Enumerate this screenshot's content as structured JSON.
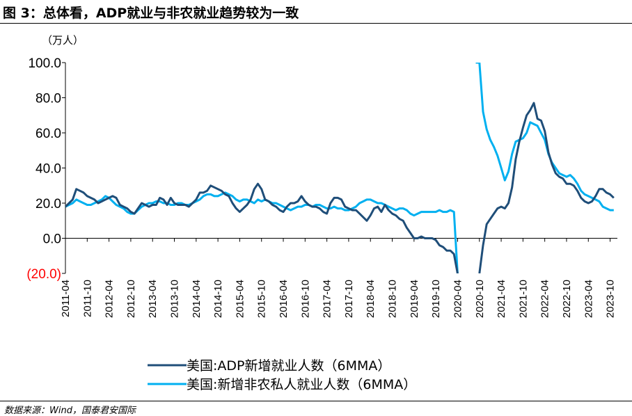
{
  "figure": {
    "title": "图 3：总体看，ADP就业与非农就业趋势较为一致",
    "source": "数据来源：Wind，国泰君安国际"
  },
  "chart_data": {
    "type": "line",
    "unit": "（万人）",
    "ylim": [
      -20,
      100
    ],
    "yticks": [
      -20,
      0,
      20,
      40,
      60,
      80,
      100
    ],
    "ytick_labels": [
      "(20.0)",
      "0.0",
      "20.0",
      "40.0",
      "60.0",
      "80.0",
      "100.0"
    ],
    "negative_tick_color": "#ff0000",
    "xlim": [
      "2011-04",
      "2023-12"
    ],
    "xticks": [
      "2011-04",
      "2011-10",
      "2012-04",
      "2012-10",
      "2013-04",
      "2013-10",
      "2014-04",
      "2014-10",
      "2015-04",
      "2015-10",
      "2016-04",
      "2016-10",
      "2017-04",
      "2017-10",
      "2018-04",
      "2018-10",
      "2019-04",
      "2019-10",
      "2020-04",
      "2020-10",
      "2021-04",
      "2021-10",
      "2022-04",
      "2022-10",
      "2023-04",
      "2023-10"
    ],
    "grid": false,
    "legend_position": "bottom",
    "series": [
      {
        "name": "美国:ADP新增就业人数（6MMA）",
        "color": "#1f4e79",
        "points": [
          [
            "2011-04",
            18
          ],
          [
            "2011-05",
            20
          ],
          [
            "2011-06",
            22
          ],
          [
            "2011-07",
            28
          ],
          [
            "2011-08",
            27
          ],
          [
            "2011-09",
            26
          ],
          [
            "2011-10",
            24
          ],
          [
            "2011-11",
            23
          ],
          [
            "2011-12",
            22
          ],
          [
            "2012-01",
            20
          ],
          [
            "2012-02",
            21
          ],
          [
            "2012-03",
            22
          ],
          [
            "2012-04",
            23
          ],
          [
            "2012-05",
            24
          ],
          [
            "2012-06",
            23
          ],
          [
            "2012-07",
            19
          ],
          [
            "2012-08",
            18
          ],
          [
            "2012-09",
            17
          ],
          [
            "2012-10",
            15
          ],
          [
            "2012-11",
            14
          ],
          [
            "2012-12",
            17
          ],
          [
            "2013-01",
            20
          ],
          [
            "2013-02",
            19
          ],
          [
            "2013-03",
            18
          ],
          [
            "2013-04",
            19
          ],
          [
            "2013-05",
            19
          ],
          [
            "2013-06",
            23
          ],
          [
            "2013-07",
            22
          ],
          [
            "2013-08",
            19
          ],
          [
            "2013-09",
            23
          ],
          [
            "2013-10",
            20
          ],
          [
            "2013-11",
            19
          ],
          [
            "2013-12",
            19
          ],
          [
            "2014-01",
            19
          ],
          [
            "2014-02",
            18
          ],
          [
            "2014-03",
            20
          ],
          [
            "2014-04",
            22
          ],
          [
            "2014-05",
            26
          ],
          [
            "2014-06",
            26
          ],
          [
            "2014-07",
            27
          ],
          [
            "2014-08",
            30
          ],
          [
            "2014-09",
            29
          ],
          [
            "2014-10",
            28
          ],
          [
            "2014-11",
            27
          ],
          [
            "2014-12",
            25
          ],
          [
            "2015-01",
            24
          ],
          [
            "2015-02",
            20
          ],
          [
            "2015-03",
            17
          ],
          [
            "2015-04",
            15
          ],
          [
            "2015-05",
            17
          ],
          [
            "2015-06",
            19
          ],
          [
            "2015-07",
            22
          ],
          [
            "2015-08",
            28
          ],
          [
            "2015-09",
            31
          ],
          [
            "2015-10",
            28
          ],
          [
            "2015-11",
            22
          ],
          [
            "2015-12",
            21
          ],
          [
            "2016-01",
            19
          ],
          [
            "2016-02",
            18
          ],
          [
            "2016-03",
            16
          ],
          [
            "2016-04",
            15
          ],
          [
            "2016-05",
            18
          ],
          [
            "2016-06",
            20
          ],
          [
            "2016-07",
            20
          ],
          [
            "2016-08",
            21
          ],
          [
            "2016-09",
            24
          ],
          [
            "2016-10",
            21
          ],
          [
            "2016-11",
            19
          ],
          [
            "2016-12",
            18
          ],
          [
            "2017-01",
            18
          ],
          [
            "2017-02",
            17
          ],
          [
            "2017-03",
            15
          ],
          [
            "2017-04",
            14
          ],
          [
            "2017-05",
            20
          ],
          [
            "2017-06",
            23
          ],
          [
            "2017-07",
            23
          ],
          [
            "2017-08",
            22
          ],
          [
            "2017-09",
            18
          ],
          [
            "2017-10",
            17
          ],
          [
            "2017-11",
            16
          ],
          [
            "2017-12",
            16
          ],
          [
            "2018-01",
            14
          ],
          [
            "2018-02",
            12
          ],
          [
            "2018-03",
            10
          ],
          [
            "2018-04",
            13
          ],
          [
            "2018-05",
            17
          ],
          [
            "2018-06",
            18
          ],
          [
            "2018-07",
            15
          ],
          [
            "2018-08",
            19
          ],
          [
            "2018-09",
            16
          ],
          [
            "2018-10",
            14
          ],
          [
            "2018-11",
            13
          ],
          [
            "2018-12",
            11
          ],
          [
            "2019-01",
            10
          ],
          [
            "2019-02",
            6
          ],
          [
            "2019-03",
            3
          ],
          [
            "2019-04",
            0
          ],
          [
            "2019-05",
            0
          ],
          [
            "2019-06",
            1
          ],
          [
            "2019-07",
            0
          ],
          [
            "2019-08",
            0
          ],
          [
            "2019-09",
            0
          ],
          [
            "2019-10",
            -1
          ],
          [
            "2019-11",
            -4
          ],
          [
            "2019-12",
            -5
          ],
          [
            "2020-01",
            -7
          ],
          [
            "2020-02",
            -7
          ],
          [
            "2020-03",
            -9
          ],
          [
            "2020-04",
            -20
          ]
        ],
        "points_after_gap": [
          [
            "2020-10",
            -20
          ],
          [
            "2020-11",
            -4
          ],
          [
            "2020-12",
            8
          ],
          [
            "2021-01",
            11
          ],
          [
            "2021-02",
            14
          ],
          [
            "2021-03",
            17
          ],
          [
            "2021-04",
            18
          ],
          [
            "2021-05",
            17
          ],
          [
            "2021-06",
            20
          ],
          [
            "2021-07",
            29
          ],
          [
            "2021-08",
            45
          ],
          [
            "2021-09",
            55
          ],
          [
            "2021-10",
            63
          ],
          [
            "2021-11",
            70
          ],
          [
            "2021-12",
            73
          ],
          [
            "2022-01",
            77
          ],
          [
            "2022-02",
            68
          ],
          [
            "2022-03",
            67
          ],
          [
            "2022-04",
            61
          ],
          [
            "2022-05",
            49
          ],
          [
            "2022-06",
            42
          ],
          [
            "2022-07",
            37
          ],
          [
            "2022-08",
            35
          ],
          [
            "2022-09",
            34
          ],
          [
            "2022-10",
            31
          ],
          [
            "2022-11",
            31
          ],
          [
            "2022-12",
            30
          ],
          [
            "2023-01",
            27
          ],
          [
            "2023-02",
            23
          ],
          [
            "2023-03",
            21
          ],
          [
            "2023-04",
            20
          ],
          [
            "2023-05",
            21
          ],
          [
            "2023-06",
            24
          ],
          [
            "2023-07",
            28
          ],
          [
            "2023-08",
            28
          ],
          [
            "2023-09",
            26
          ],
          [
            "2023-10",
            25
          ],
          [
            "2023-11",
            23
          ]
        ]
      },
      {
        "name": "美国:新增非农私人就业人数（6MMA）",
        "color": "#00b0f0",
        "points": [
          [
            "2011-04",
            18
          ],
          [
            "2011-05",
            19
          ],
          [
            "2011-06",
            20
          ],
          [
            "2011-07",
            22
          ],
          [
            "2011-08",
            21
          ],
          [
            "2011-09",
            20
          ],
          [
            "2011-10",
            19
          ],
          [
            "2011-11",
            19
          ],
          [
            "2011-12",
            20
          ],
          [
            "2012-01",
            21
          ],
          [
            "2012-02",
            22
          ],
          [
            "2012-03",
            24
          ],
          [
            "2012-04",
            23
          ],
          [
            "2012-05",
            21
          ],
          [
            "2012-06",
            19
          ],
          [
            "2012-07",
            18
          ],
          [
            "2012-08",
            17
          ],
          [
            "2012-09",
            15
          ],
          [
            "2012-10",
            14
          ],
          [
            "2012-11",
            14
          ],
          [
            "2012-12",
            16
          ],
          [
            "2013-01",
            18
          ],
          [
            "2013-02",
            19
          ],
          [
            "2013-03",
            20
          ],
          [
            "2013-04",
            20
          ],
          [
            "2013-05",
            21
          ],
          [
            "2013-06",
            21
          ],
          [
            "2013-07",
            20
          ],
          [
            "2013-08",
            20
          ],
          [
            "2013-09",
            19
          ],
          [
            "2013-10",
            19
          ],
          [
            "2013-11",
            20
          ],
          [
            "2013-12",
            20
          ],
          [
            "2014-01",
            19
          ],
          [
            "2014-02",
            19
          ],
          [
            "2014-03",
            20
          ],
          [
            "2014-04",
            21
          ],
          [
            "2014-05",
            22
          ],
          [
            "2014-06",
            24
          ],
          [
            "2014-07",
            25
          ],
          [
            "2014-08",
            25
          ],
          [
            "2014-09",
            24
          ],
          [
            "2014-10",
            24
          ],
          [
            "2014-11",
            25
          ],
          [
            "2014-12",
            26
          ],
          [
            "2015-01",
            25
          ],
          [
            "2015-02",
            24
          ],
          [
            "2015-03",
            22
          ],
          [
            "2015-04",
            21
          ],
          [
            "2015-05",
            22
          ],
          [
            "2015-06",
            22
          ],
          [
            "2015-07",
            21
          ],
          [
            "2015-08",
            20
          ],
          [
            "2015-09",
            22
          ],
          [
            "2015-10",
            21
          ],
          [
            "2015-11",
            22
          ],
          [
            "2015-12",
            21
          ],
          [
            "2016-01",
            20
          ],
          [
            "2016-02",
            20
          ],
          [
            "2016-03",
            19
          ],
          [
            "2016-04",
            18
          ],
          [
            "2016-05",
            17
          ],
          [
            "2016-06",
            16
          ],
          [
            "2016-07",
            17
          ],
          [
            "2016-08",
            18
          ],
          [
            "2016-09",
            18
          ],
          [
            "2016-10",
            19
          ],
          [
            "2016-11",
            19
          ],
          [
            "2016-12",
            18
          ],
          [
            "2017-01",
            19
          ],
          [
            "2017-02",
            19
          ],
          [
            "2017-03",
            18
          ],
          [
            "2017-04",
            17
          ],
          [
            "2017-05",
            17
          ],
          [
            "2017-06",
            18
          ],
          [
            "2017-07",
            17
          ],
          [
            "2017-08",
            17
          ],
          [
            "2017-09",
            16
          ],
          [
            "2017-10",
            16
          ],
          [
            "2017-11",
            17
          ],
          [
            "2017-12",
            18
          ],
          [
            "2018-01",
            20
          ],
          [
            "2018-02",
            21
          ],
          [
            "2018-03",
            22
          ],
          [
            "2018-04",
            22
          ],
          [
            "2018-05",
            21
          ],
          [
            "2018-06",
            20
          ],
          [
            "2018-07",
            20
          ],
          [
            "2018-08",
            19
          ],
          [
            "2018-09",
            18
          ],
          [
            "2018-10",
            17
          ],
          [
            "2018-11",
            16
          ],
          [
            "2018-12",
            17
          ],
          [
            "2019-01",
            17
          ],
          [
            "2019-02",
            16
          ],
          [
            "2019-03",
            14
          ],
          [
            "2019-04",
            13
          ],
          [
            "2019-05",
            14
          ],
          [
            "2019-06",
            15
          ],
          [
            "2019-07",
            15
          ],
          [
            "2019-08",
            15
          ],
          [
            "2019-09",
            15
          ],
          [
            "2019-10",
            15
          ],
          [
            "2019-11",
            16
          ],
          [
            "2019-12",
            15
          ],
          [
            "2020-01",
            15
          ],
          [
            "2020-02",
            16
          ],
          [
            "2020-03",
            15
          ],
          [
            "2020-04",
            -20
          ]
        ],
        "points_after_gap": [
          [
            "2020-09",
            100
          ],
          [
            "2020-10",
            100
          ],
          [
            "2020-11",
            72
          ],
          [
            "2020-12",
            62
          ],
          [
            "2021-01",
            56
          ],
          [
            "2021-02",
            52
          ],
          [
            "2021-03",
            47
          ],
          [
            "2021-04",
            40
          ],
          [
            "2021-05",
            33
          ],
          [
            "2021-06",
            38
          ],
          [
            "2021-07",
            48
          ],
          [
            "2021-08",
            55
          ],
          [
            "2021-09",
            56
          ],
          [
            "2021-10",
            57
          ],
          [
            "2021-11",
            60
          ],
          [
            "2021-12",
            66
          ],
          [
            "2022-01",
            65
          ],
          [
            "2022-02",
            64
          ],
          [
            "2022-03",
            60
          ],
          [
            "2022-04",
            56
          ],
          [
            "2022-05",
            48
          ],
          [
            "2022-06",
            43
          ],
          [
            "2022-07",
            40
          ],
          [
            "2022-08",
            37
          ],
          [
            "2022-09",
            36
          ],
          [
            "2022-10",
            35
          ],
          [
            "2022-11",
            36
          ],
          [
            "2022-12",
            34
          ],
          [
            "2023-01",
            31
          ],
          [
            "2023-02",
            27
          ],
          [
            "2023-03",
            25
          ],
          [
            "2023-04",
            24
          ],
          [
            "2023-05",
            23
          ],
          [
            "2023-06",
            22
          ],
          [
            "2023-07",
            21
          ],
          [
            "2023-08",
            18
          ],
          [
            "2023-09",
            17
          ],
          [
            "2023-10",
            16
          ],
          [
            "2023-11",
            16
          ]
        ]
      }
    ]
  }
}
